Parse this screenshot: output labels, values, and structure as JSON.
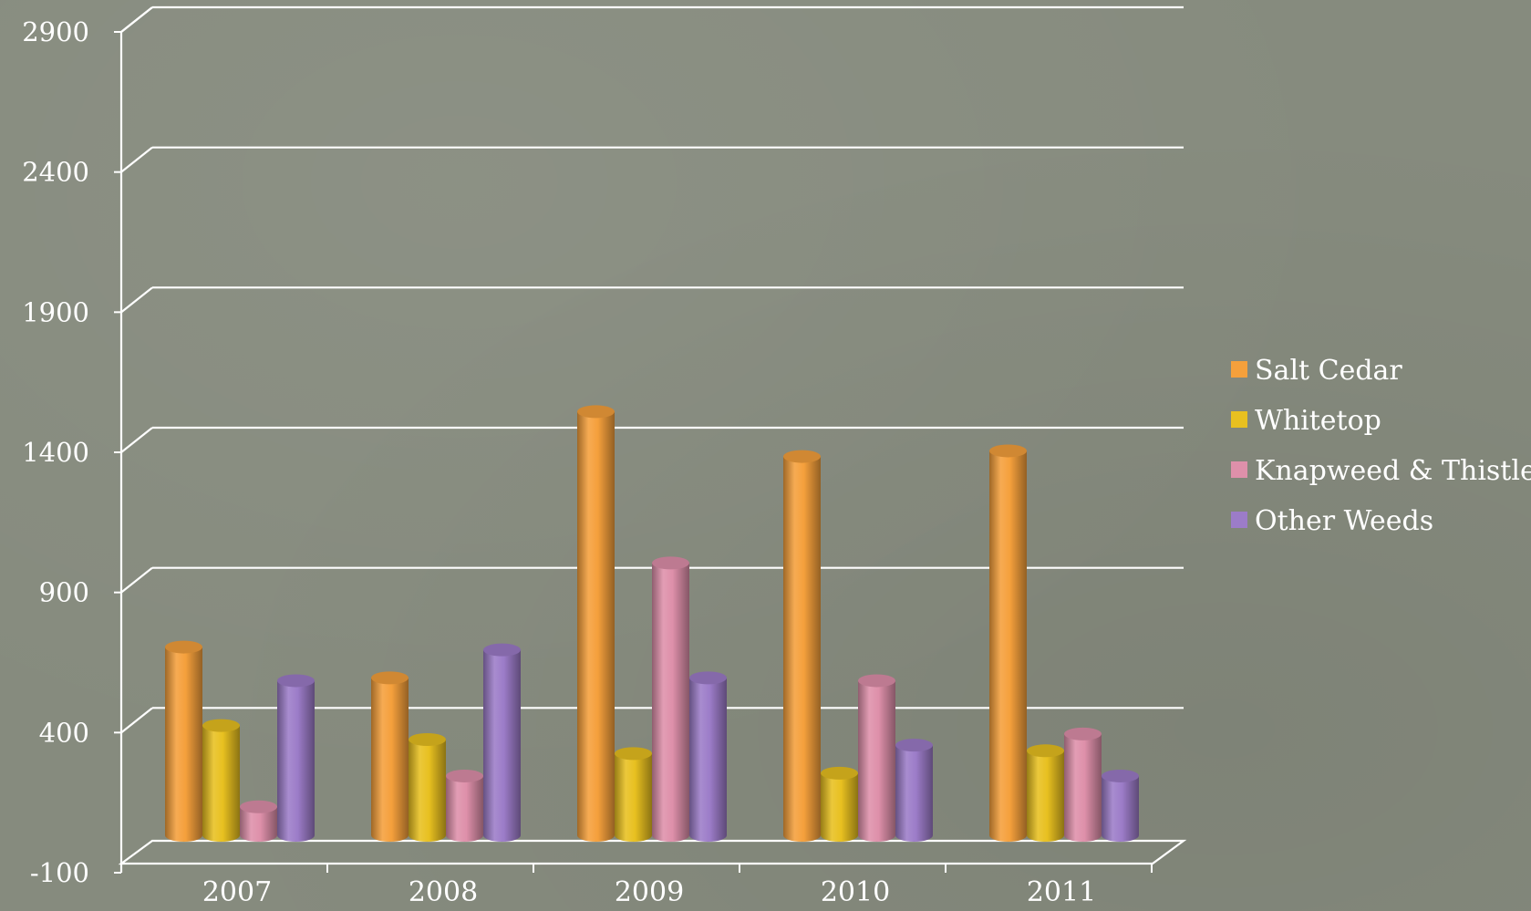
{
  "chart_data": {
    "type": "bar",
    "title": "",
    "xlabel": "",
    "ylabel": "",
    "categories": [
      "2007",
      "2008",
      "2009",
      "2010",
      "2011"
    ],
    "ylim": [
      -100,
      2900
    ],
    "yticks": [
      "2900",
      "2400",
      "1900",
      "1400",
      "900",
      "400",
      "-100"
    ],
    "grid": true,
    "legend_position": "right",
    "style": "3d-cylinder",
    "series": [
      {
        "name": "Salt Cedar",
        "color": "#f5a03c",
        "values": [
          640,
          530,
          1480,
          1320,
          1340
        ]
      },
      {
        "name": "Whitetop",
        "color": "#e8c020",
        "values": [
          360,
          310,
          260,
          190,
          270
        ]
      },
      {
        "name": "Knapweed & Thistle",
        "color": "#de90aa",
        "values": [
          70,
          180,
          940,
          520,
          330
        ]
      },
      {
        "name": "Other Weeds",
        "color": "#9c7cc8",
        "values": [
          520,
          630,
          530,
          290,
          180
        ]
      }
    ]
  }
}
